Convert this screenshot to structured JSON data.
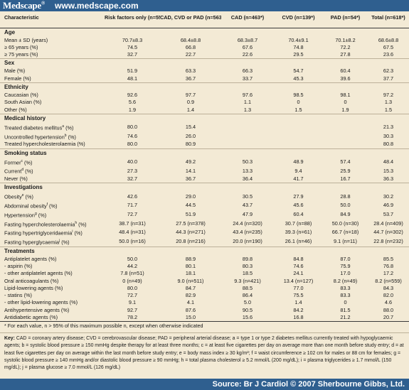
{
  "header": {
    "logo": "Medscape",
    "logo_mark": "®",
    "url": "www.medscape.com"
  },
  "colors": {
    "brand_bar": "#2f5f8f",
    "panel_bg": "#f3ead5"
  },
  "table": {
    "columns": [
      "Characteristic",
      "Risk factors only (n=55*)",
      "CAD, CVD or PAD (n=563*)",
      "CAD (n=463*)",
      "CVD (n=139*)",
      "PAD (n=54*)",
      "Total (n=618*)"
    ],
    "sections": [
      {
        "title": "Age",
        "rows": [
          {
            "label": "Mean ± SD (years)",
            "values": [
              "70.7±8.3",
              "68.4±8.8",
              "68.3±8.7",
              "70.4±9.1",
              "70.1±8.2",
              "68.6±8.8"
            ]
          },
          {
            "label": "≥ 65 years (%)",
            "values": [
              "74.5",
              "66.8",
              "67.6",
              "74.8",
              "72.2",
              "67.5"
            ]
          },
          {
            "label": "≥ 75 years (%)",
            "values": [
              "32.7",
              "22.7",
              "22.6",
              "29.5",
              "27.8",
              "23.6"
            ]
          }
        ]
      },
      {
        "title": "Sex",
        "rows": [
          {
            "label": "Male (%)",
            "values": [
              "51.9",
              "63.3",
              "66.3",
              "54.7",
              "60.4",
              "62.3"
            ]
          },
          {
            "label": "Female (%)",
            "values": [
              "48.1",
              "36.7",
              "33.7",
              "45.3",
              "39.6",
              "37.7"
            ]
          }
        ]
      },
      {
        "title": "Ethnicity",
        "rows": [
          {
            "label": "Caucasian (%)",
            "values": [
              "92.6",
              "97.7",
              "97.6",
              "98.5",
              "98.1",
              "97.2"
            ]
          },
          {
            "label": "South Asian (%)",
            "values": [
              "5.6",
              "0.9",
              "1.1",
              "0",
              "0",
              "1.3"
            ]
          },
          {
            "label": "Other (%)",
            "values": [
              "1.9",
              "1.4",
              "1.3",
              "1.5",
              "1.9",
              "1.5"
            ]
          }
        ]
      },
      {
        "title": "Medical history",
        "rows": [
          {
            "label": "Treated diabetes mellitus^a (%)",
            "values": [
              "80.0",
              "15.4",
              "",
              "",
              "",
              "21.3"
            ]
          },
          {
            "label": "Uncontrolled hypertension^b (%)",
            "values": [
              "74.6",
              "26.0",
              "",
              "",
              "",
              "30.3"
            ]
          },
          {
            "label": "Treated hypercholesterolaemia (%)",
            "values": [
              "80.0",
              "80.9",
              "",
              "",
              "",
              "80.8"
            ]
          }
        ]
      },
      {
        "title": "Smoking status",
        "rows": [
          {
            "label": "Former^c (%)",
            "values": [
              "40.0",
              "49.2",
              "50.3",
              "48.9",
              "57.4",
              "48.4"
            ]
          },
          {
            "label": "Current^d (%)",
            "values": [
              "27.3",
              "14.1",
              "13.3",
              "9.4",
              "25.9",
              "15.3"
            ]
          },
          {
            "label": "Never (%)",
            "values": [
              "32.7",
              "36.7",
              "36.4",
              "41.7",
              "16.7",
              "36.3"
            ]
          }
        ]
      },
      {
        "title": "Investigations",
        "rows": [
          {
            "label": "Obesity^e (%)",
            "values": [
              "42.6",
              "29.0",
              "30.5",
              "27.9",
              "28.8",
              "30.2"
            ]
          },
          {
            "label": "Abdominal obesity^f (%)",
            "values": [
              "71.7",
              "44.5",
              "43.7",
              "45.6",
              "50.0",
              "46.9"
            ]
          },
          {
            "label": "Hypertension^g (%)",
            "values": [
              "72.7",
              "51.9",
              "47.9",
              "60.4",
              "84.9",
              "53.7"
            ]
          },
          {
            "label": "Fasting hypercholesterolaemia^h (%)",
            "values": [
              "38.7 (n=31)",
              "27.5 (n=378)",
              "24.4 (n=320)",
              "30.7 (n=88)",
              "50.0 (n=30)",
              "28.4 (n=409)"
            ]
          },
          {
            "label": "Fasting hypertriglyceridaemia^i (%)",
            "values": [
              "48.4 (n=31)",
              "44.3 (n=271)",
              "43.4 (n=235)",
              "39.3 (n=61)",
              "66.7 (n=18)",
              "44.7 (n=302)"
            ]
          },
          {
            "label": "Fasting hyperglycaemia^j (%)",
            "values": [
              "50.0 (n=16)",
              "20.8 (n=216)",
              "20.0 (n=190)",
              "26.1 (n=46)",
              "9.1 (n=11)",
              "22.8 (n=232)"
            ]
          }
        ]
      },
      {
        "title": "Treatments",
        "rows": [
          {
            "label": "Antiplatelet agents (%)",
            "values": [
              "50.0",
              "88.9",
              "89.8",
              "84.8",
              "87.0",
              "85.5"
            ]
          },
          {
            "label": "- aspirin (%)",
            "values": [
              "44.2",
              "80.1",
              "80.3",
              "74.6",
              "75.9",
              "76.8"
            ]
          },
          {
            "label": "- other antiplatelet agents (%)",
            "values": [
              "7.8 (n=51)",
              "18.1",
              "18.5",
              "24.1",
              "17.0",
              "17.2"
            ]
          },
          {
            "label": "Oral anticoagulants (%)",
            "values": [
              "0 (n=49)",
              "9.0 (n=511)",
              "9.3 (n=421)",
              "13.4 (n=127)",
              "8.2 (n=49)",
              "8.2 (n=559)"
            ]
          },
          {
            "label": "Lipid-lowering agents (%)",
            "values": [
              "80.0",
              "84.7",
              "88.5",
              "77.0",
              "83.3",
              "84.3"
            ]
          },
          {
            "label": "- statins (%)",
            "values": [
              "72.7",
              "82.9",
              "86.4",
              "75.5",
              "83.3",
              "82.0"
            ]
          },
          {
            "label": "- other lipid-lowering agents (%)",
            "values": [
              "9.1",
              "4.1",
              "5.0",
              "1.4",
              "0",
              "4.6"
            ]
          },
          {
            "label": "Antihypertensive agents (%)",
            "values": [
              "92.7",
              "87.6",
              "90.5",
              "84.2",
              "81.5",
              "88.0"
            ]
          },
          {
            "label": "Antidiabetic agents (%)",
            "values": [
              "78.2",
              "15.0",
              "15.6",
              "16.8",
              "21.2",
              "20.7"
            ]
          }
        ]
      }
    ]
  },
  "footnote": "* For each value, n > 95% of this maximum possible n, except when otherwise indicated",
  "key": {
    "label": "Key:",
    "text": "CAD = coronary artery disease; CVD = cerebrovascular disease; PAD = peripheral arterial disease; a = type 1 or type 2 diabetes mellitus currently treated with hypoglycaemic agents; b = systolic blood pressure ≥ 150 mmHg despite therapy for at least three months; c = at least five cigarettes per day on average more than one month before study entry; d = at least five cigarettes per day on average within the last month before study entry; e = body mass index ≥ 30 kg/m²; f = waist circumference ≥ 102 cm for males or 88 cm for females; g = systolic blood pressure ≥ 140 mmHg and/or diastolic blood pressure ≥ 90 mmHg; h = total plasma cholesterol ≥ 5.2 mmol/L (200 mg/dL); i = plasma triglycerides ≥ 1.7 mmol/L (150 mg/dL); j = plasma glucose ≥ 7.0 mmol/L (126 mg/dL)"
  },
  "source": "Source: Br J Cardiol © 2007 Sherbourne Gibbs, Ltd."
}
